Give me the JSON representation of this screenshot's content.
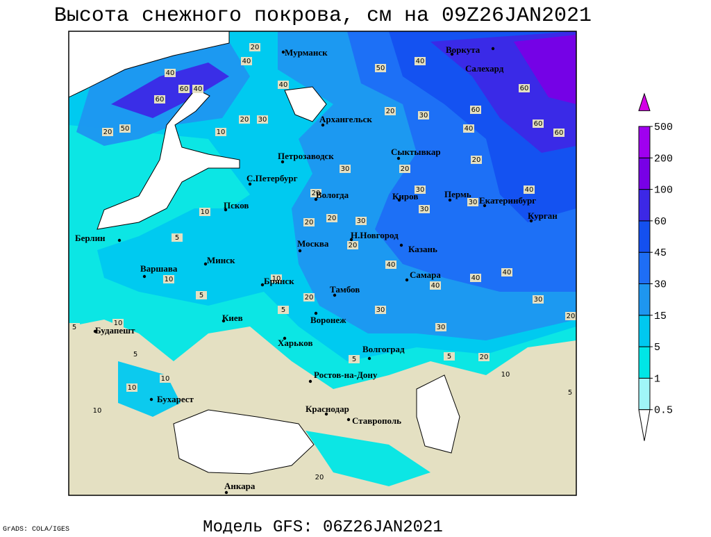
{
  "header": {
    "title": "Высота снежного покрова, см на 09Z26JAN2021"
  },
  "footer": {
    "credit": "GrADS: COLA/IGES",
    "model": "Модель GFS: 06Z26JAN2021"
  },
  "legend": {
    "levels": [
      0.5,
      1,
      5,
      15,
      30,
      45,
      60,
      100,
      200,
      500
    ],
    "colors": [
      "#ffffff",
      "#a0f5f8",
      "#00e6e6",
      "#00c8f0",
      "#1e96f0",
      "#1e6ef5",
      "#1450f0",
      "#3c28e6",
      "#7800e6",
      "#a000f0",
      "#d400e6"
    ]
  },
  "map": {
    "land_color": "#e4e0c2",
    "sea_color": "#ffffff",
    "cities": [
      "Мурманск",
      "Воркута",
      "Салехард",
      "Архангельск",
      "Петрозаводск",
      "Сыктывкар",
      "С.Петербург",
      "Вологда",
      "Киров",
      "Пермь",
      "Екатеринбург",
      "Псков",
      "Курган",
      "Н.Новгород",
      "Берлин",
      "Москва",
      "Казань",
      "Минск",
      "Варшава",
      "Брянск",
      "Самара",
      "Тамбов",
      "Киев",
      "Воронеж",
      "Будапешт",
      "Харьков",
      "Волгоград",
      "Ростов-на-Дону",
      "Бухарест",
      "Краснодар",
      "Ставрополь",
      "Анкара"
    ],
    "contour_labels": [
      20,
      40,
      40,
      60,
      40,
      60,
      50,
      20,
      10,
      20,
      30,
      40,
      50,
      40,
      60,
      60,
      60,
      60,
      20,
      30,
      40,
      20,
      30,
      20,
      30,
      30,
      30,
      40,
      20,
      10,
      5,
      20,
      20,
      30,
      20,
      40,
      40,
      40,
      40,
      30,
      20,
      30,
      30,
      20,
      10,
      10,
      5,
      5,
      10,
      5,
      5,
      10,
      10,
      10,
      5,
      20,
      10,
      5,
      5,
      20
    ]
  }
}
